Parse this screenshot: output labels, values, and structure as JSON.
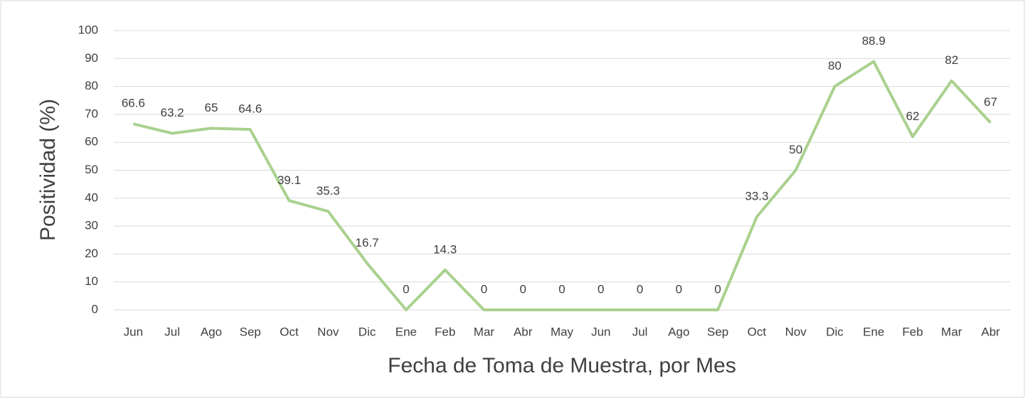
{
  "chart_data": {
    "type": "line",
    "xlabel": "Fecha de Toma de Muestra, por Mes",
    "ylabel": "Positividad (%)",
    "categories": [
      "Jun",
      "Jul",
      "Ago",
      "Sep",
      "Oct",
      "Nov",
      "Dic",
      "Ene",
      "Feb",
      "Mar",
      "Abr",
      "May",
      "Jun",
      "Jul",
      "Ago",
      "Sep",
      "Oct",
      "Nov",
      "Dic",
      "Ene",
      "Feb",
      "Mar",
      "Abr"
    ],
    "series": [
      {
        "color": "#a9d18e",
        "values": [
          66.6,
          63.2,
          65,
          64.6,
          39.1,
          35.3,
          16.7,
          0,
          14.3,
          0,
          0,
          0,
          0,
          0,
          0,
          0,
          33.3,
          50,
          80,
          88.9,
          62,
          82,
          67
        ]
      }
    ],
    "ylim": [
      0,
      100
    ],
    "yticks": [
      0,
      10,
      20,
      30,
      40,
      50,
      60,
      70,
      80,
      90,
      100
    ],
    "grid": true
  }
}
